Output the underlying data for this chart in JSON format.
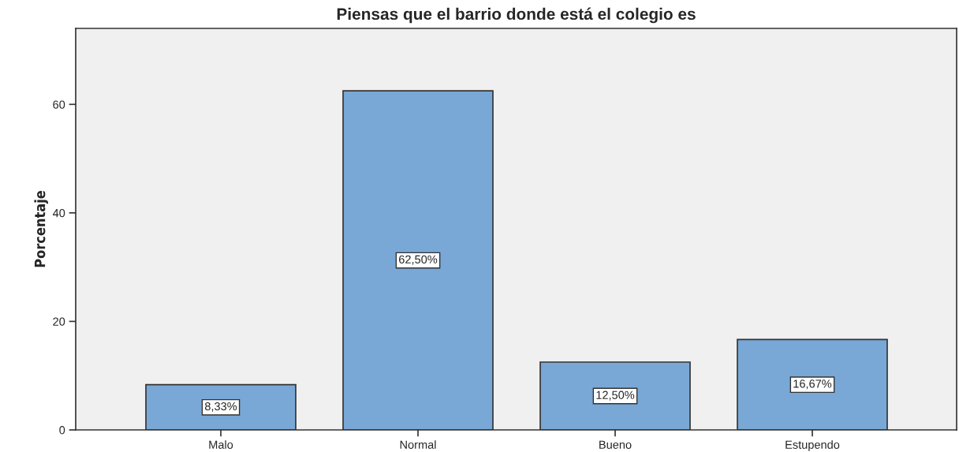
{
  "chart_data": {
    "type": "bar",
    "title": "Piensas que el barrio donde está el colegio es",
    "ylabel": "Porcentaje",
    "categories": [
      "Malo",
      "Normal",
      "Bueno",
      "Estupendo"
    ],
    "values": [
      8.33,
      62.5,
      12.5,
      16.67
    ],
    "value_labels": [
      "8,33%",
      "62,50%",
      "12,50%",
      "16,67%"
    ],
    "color": "#79a8d6",
    "ylim": [
      0,
      74
    ],
    "yticks": [
      0,
      20,
      40,
      60
    ],
    "grid": false,
    "legend": false
  }
}
